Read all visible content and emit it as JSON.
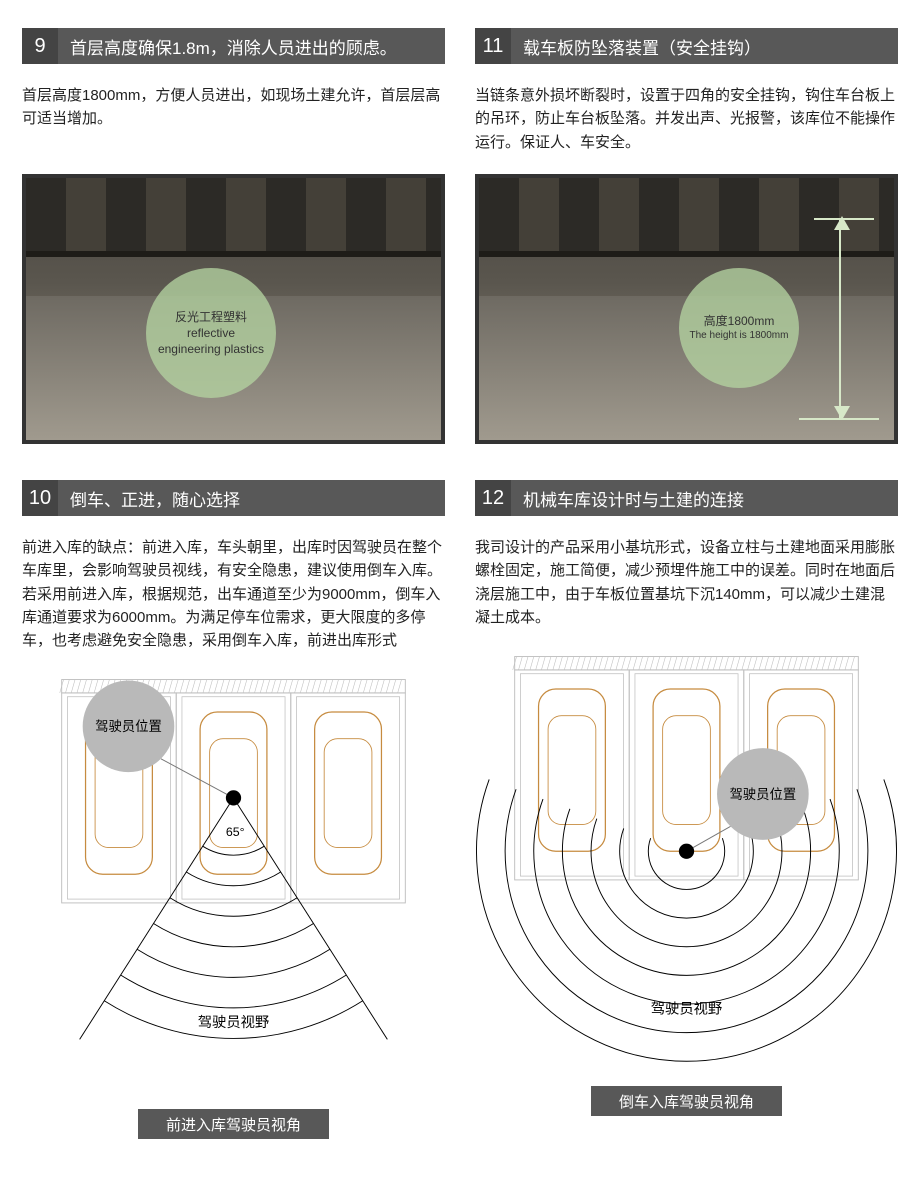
{
  "sections": {
    "s9": {
      "num": "9",
      "title": "首层高度确保1.8m，消除人员进出的顾虑。",
      "desc": "首层高度1800mm，方便人员进出，如现场土建允许，首层层高可适当增加。",
      "callout_line1": "反光工程塑料",
      "callout_line2": "reflective",
      "callout_line3": "engineering plastics",
      "callout_color": "rgba(180,210,160,0.78)"
    },
    "s11": {
      "num": "11",
      "title": "载车板防坠落装置（安全挂钩）",
      "desc": "当链条意外损坏断裂时，设置于四角的安全挂钩，钩住车台板上的吊环，防止车台板坠落。并发出声、光报警，该库位不能操作运行。保证人、车安全。",
      "callout_line1": "高度1800mm",
      "callout_line2": "The height is 1800mm",
      "callout_color": "rgba(180,210,160,0.78)"
    },
    "s10": {
      "num": "10",
      "title": "倒车、正进，随心选择",
      "desc": "前进入库的缺点：前进入库，车头朝里，出库时因驾驶员在整个车库里，会影响驾驶员视线，有安全隐患，建议使用倒车入库。若采用前进入库，根据规范，出车通道至少为9000mm，倒车入库通道要求为6000mm。为满足停车位需求，更大限度的多停车，也考虑避免安全隐患，采用倒车入库，前进出库形式",
      "diagram": {
        "type": "field-of-view-diagram",
        "car_color": "#d9a96c",
        "car_outline": "#c68b3f",
        "bay_line_color": "#bfbfbf",
        "ray_color": "#000000",
        "arc_color": "#000000",
        "driver_dot_radius": 8,
        "driver_label": "驾驶员位置",
        "driver_label_bubble": "#b9b9b9",
        "fov_label": "驾驶员视野",
        "angle_label": "65°",
        "caption": "前进入库驾驶员视角"
      }
    },
    "s12": {
      "num": "12",
      "title": "机械车库设计时与土建的连接",
      "desc": "我司设计的产品采用小基坑形式，设备立柱与土建地面采用膨胀螺栓固定，施工简便，减少预埋件施工中的误差。同时在地面后浇层施工中，由于车板位置基坑下沉140mm，可以减少土建混凝土成本。",
      "diagram": {
        "type": "field-of-view-diagram",
        "car_color": "#d9a96c",
        "car_outline": "#c68b3f",
        "bay_line_color": "#bfbfbf",
        "ray_color": "#000000",
        "arc_color": "#000000",
        "driver_dot_radius": 8,
        "driver_label": "驾驶员位置",
        "driver_label_bubble": "#b9b9b9",
        "fov_label": "驾驶员视野",
        "caption": "倒车入库驾驶员视角"
      }
    }
  },
  "colors": {
    "header_num_bg": "#444444",
    "header_title_bg": "#585858",
    "header_text": "#ffffff",
    "body_text": "#222222",
    "page_bg": "#ffffff"
  }
}
